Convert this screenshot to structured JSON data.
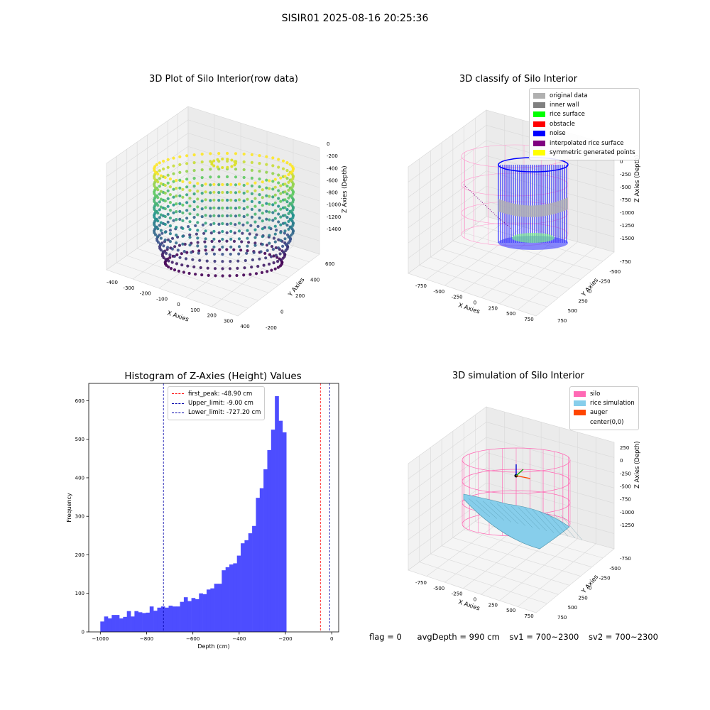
{
  "suptitle": "SISIR01 2025-08-16 20:25:36",
  "status": {
    "flag": "flag = 0",
    "avg_depth": "avgDepth = 990 cm",
    "sv1": "sv1 = 700~2300",
    "sv2": "sv2 = 700~2300"
  },
  "colors": {
    "histogram_bar": "#4d4dff",
    "first_peak_line": "#ff0000",
    "limit_line": "#0000aa",
    "silo": "#ff69b4",
    "rice_simulation": "#87ceeb",
    "auger": "#ff4500"
  },
  "chart_data": [
    {
      "type": "scatter",
      "title": "3D Plot of Silo Interior(row data)",
      "xlabel": "X Axies",
      "ylabel": "Y Axies",
      "zlabel": "Z Axies (Depth)",
      "x_ticks": [
        "-400",
        "-300",
        "-200",
        "-100",
        "0",
        "100",
        "200",
        "300",
        "400"
      ],
      "y_ticks": [
        "-200",
        "0",
        "200",
        "400",
        "600"
      ],
      "z_ticks": [
        "0",
        "-200",
        "-400",
        "-600",
        "-800",
        "-1000",
        "-1200",
        "-1400"
      ],
      "colormap": "viridis"
    },
    {
      "type": "scatter",
      "title": "3D classify of Silo Interior",
      "xlabel": "X Axies",
      "ylabel": "Y Axies",
      "zlabel": "Z Axies (Depth)",
      "x_ticks": [
        "-750",
        "-500",
        "-250",
        "0",
        "250",
        "500",
        "750"
      ],
      "y_ticks": [
        "-750",
        "-500",
        "-250",
        "0",
        "250",
        "500",
        "750"
      ],
      "z_ticks": [
        "0",
        "-250",
        "-500",
        "-750",
        "-1000",
        "-1250",
        "-1500"
      ],
      "legend": [
        {
          "label": "original data",
          "color": "#b0b0b0"
        },
        {
          "label": "inner wall",
          "color": "#808080"
        },
        {
          "label": "rice surface",
          "color": "#00ff00"
        },
        {
          "label": "obstacle",
          "color": "#ff0000"
        },
        {
          "label": "noise",
          "color": "#0000ff"
        },
        {
          "label": "interpolated rice surface",
          "color": "#800080"
        },
        {
          "label": "symmetric generated points",
          "color": "#ffff00"
        }
      ],
      "legend_position": "upper-right"
    },
    {
      "type": "bar",
      "title": "Histogram of Z-Axies (Height) Values",
      "xlabel": "Depth (cm)",
      "ylabel": "Frequency",
      "xlim": [
        -1050,
        30
      ],
      "ylim": [
        0,
        645
      ],
      "x_ticks": [
        -1000,
        -800,
        -600,
        -400,
        -200,
        0
      ],
      "y_ticks": [
        0,
        100,
        200,
        300,
        400,
        500,
        600
      ],
      "bin_start": -1000,
      "bin_width": 16.4,
      "values": [
        27,
        40,
        35,
        44,
        44,
        35,
        39,
        54,
        40,
        54,
        51,
        49,
        50,
        66,
        55,
        63,
        66,
        63,
        68,
        66,
        66,
        78,
        90,
        80,
        88,
        85,
        100,
        98,
        110,
        113,
        125,
        125,
        160,
        168,
        175,
        178,
        198,
        230,
        238,
        256,
        275,
        348,
        373,
        422,
        472,
        525,
        612,
        548,
        518
      ],
      "vlines": [
        {
          "x": -48.9,
          "label": "first_peak: -48.90 cm",
          "color": "#ff0000"
        },
        {
          "x": -9.0,
          "label": "Upper_limit: -9.00 cm",
          "color": "#0000aa"
        },
        {
          "x": -727.2,
          "label": "Lower_limit: -727.20 cm",
          "color": "#0000aa"
        }
      ],
      "legend_position": "upper-center"
    },
    {
      "type": "scatter",
      "title": "3D simulation of Silo Interior",
      "xlabel": "X Axies",
      "ylabel": "Y Axies",
      "zlabel": "Z Axies (Depth)",
      "x_ticks": [
        "-750",
        "-500",
        "-250",
        "0",
        "250",
        "500",
        "750"
      ],
      "y_ticks": [
        "-750",
        "-500",
        "-250",
        "0",
        "250",
        "500",
        "750"
      ],
      "z_ticks": [
        "250",
        "0",
        "-250",
        "-500",
        "-750",
        "-1000",
        "-1250"
      ],
      "legend": [
        {
          "label": "silo",
          "color": "#ff69b4"
        },
        {
          "label": "rice simulation",
          "color": "#87ceeb"
        },
        {
          "label": "auger",
          "color": "#ff4500"
        },
        {
          "label": "center(0,0)",
          "color": "#ffffff"
        }
      ],
      "legend_position": "upper-right"
    }
  ]
}
